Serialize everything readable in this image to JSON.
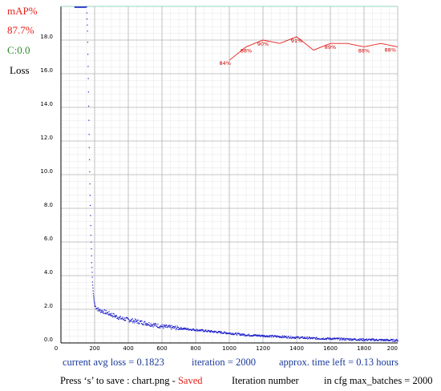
{
  "legend": {
    "map_label": "mAP%",
    "map_value": "87.7%",
    "c_label": "C:0.0",
    "loss_label": "Loss"
  },
  "footer": {
    "avg_loss": "current avg loss = 0.1823",
    "iteration": "iteration = 2000",
    "time_left": "approx. time left = 0.13 hours",
    "save_prefix": "Press ‘s’ to save : chart.png - ",
    "save_status": "Saved",
    "xlabel": "Iteration number",
    "max_batches": "in cfg max_batches = 2000"
  },
  "colors": {
    "map_red": "#e8201a",
    "c_green": "#2e8b2e",
    "loss_blue": "#1a1acc",
    "info_blue": "#1a3a9a"
  },
  "chart_data": {
    "type": "line",
    "xlim": [
      0,
      2000
    ],
    "ylim": [
      0,
      20
    ],
    "grid": true,
    "x_ticks": [
      "0",
      "200",
      "400",
      "600",
      "800",
      "1000",
      "1200",
      "1400",
      "1600",
      "1800",
      "200"
    ],
    "y_ticks": [
      "0.0",
      "2.0",
      "4.0",
      "6.0",
      "8.0",
      "10.0",
      "12.0",
      "14.0",
      "16.0",
      "18.0"
    ],
    "series": [
      {
        "name": "Loss",
        "x": [
          150,
          155,
          160,
          165,
          170,
          175,
          180,
          185,
          190,
          195,
          200,
          210,
          220,
          230,
          250,
          275,
          300,
          325,
          350,
          400,
          450,
          500,
          550,
          600,
          650,
          700,
          800,
          900,
          1000,
          1100,
          1200,
          1300,
          1400,
          1500,
          1600,
          1700,
          1800,
          1900,
          2000
        ],
        "y": [
          20.0,
          18.5,
          15.5,
          12.0,
          9.0,
          6.5,
          4.8,
          3.6,
          2.9,
          2.5,
          2.2,
          2.1,
          2.0,
          1.95,
          1.9,
          1.8,
          1.7,
          1.6,
          1.5,
          1.4,
          1.3,
          1.2,
          1.1,
          1.0,
          0.95,
          0.9,
          0.8,
          0.7,
          0.6,
          0.5,
          0.45,
          0.4,
          0.35,
          0.3,
          0.28,
          0.25,
          0.22,
          0.2,
          0.18
        ]
      },
      {
        "name": "mAP%",
        "x": [
          1000,
          1100,
          1200,
          1300,
          1400,
          1500,
          1600,
          1700,
          1800,
          1900,
          2000
        ],
        "y": [
          84,
          88,
          90,
          89,
          91,
          87,
          89,
          89,
          88,
          89,
          88
        ],
        "point_labels": [
          {
            "x": 1000,
            "text": "84%"
          },
          {
            "x": 1100,
            "text": "88%"
          },
          {
            "x": 1200,
            "text": "90%"
          },
          {
            "x": 1400,
            "text": "91%"
          },
          {
            "x": 1600,
            "text": "89%"
          },
          {
            "x": 1800,
            "text": "88%"
          },
          {
            "x": 2000,
            "text": "88%"
          }
        ]
      }
    ]
  }
}
